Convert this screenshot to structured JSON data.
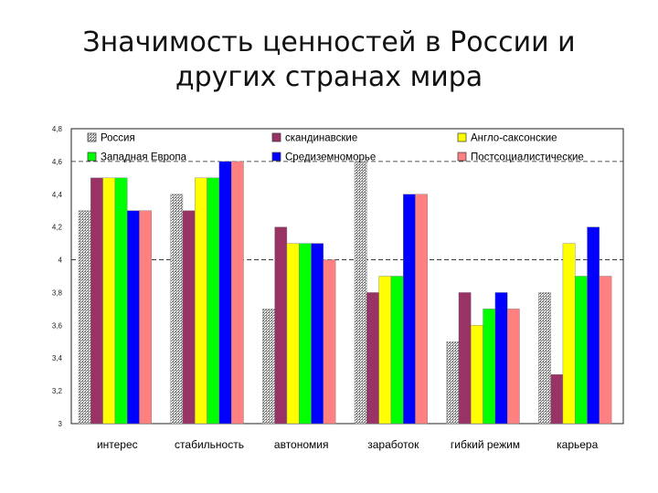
{
  "slide": {
    "title_line1": "Значимость ценностей в России и",
    "title_line2": "других странах мира"
  },
  "chart_data": {
    "type": "bar",
    "categories": [
      "интерес",
      "стабильность",
      "автономия",
      "заработок",
      "гибкий режим",
      "карьера"
    ],
    "series": [
      {
        "name": "Россия",
        "color": "#c8c8c8",
        "pattern": "hatch",
        "values": [
          4.3,
          4.4,
          3.7,
          4.6,
          3.5,
          3.8
        ]
      },
      {
        "name": "скандинавские",
        "color": "#993366",
        "values": [
          4.5,
          4.3,
          4.2,
          3.8,
          3.8,
          3.3
        ]
      },
      {
        "name": "Англо-саксонские",
        "color": "#ffff00",
        "values": [
          4.5,
          4.5,
          4.1,
          3.9,
          3.6,
          4.1
        ]
      },
      {
        "name": "Западная Европа",
        "color": "#00ff00",
        "values": [
          4.5,
          4.5,
          4.1,
          3.9,
          3.7,
          3.9
        ]
      },
      {
        "name": "Средиземноморье",
        "color": "#0000ff",
        "values": [
          4.3,
          4.6,
          4.1,
          4.4,
          3.8,
          4.2
        ]
      },
      {
        "name": "Постсоциалистические",
        "color": "#ff8080",
        "values": [
          4.3,
          4.6,
          4.0,
          4.4,
          3.7,
          3.9
        ]
      }
    ],
    "yticks": [
      "3",
      "3,2",
      "3,4",
      "3,6",
      "3,8",
      "4",
      "4,2",
      "4,4",
      "4,6",
      "4,8"
    ],
    "ylim": [
      3,
      4.8
    ],
    "reference_lines": [
      4,
      4.6
    ],
    "legend_position": "top",
    "xlabel": "",
    "ylabel": ""
  }
}
